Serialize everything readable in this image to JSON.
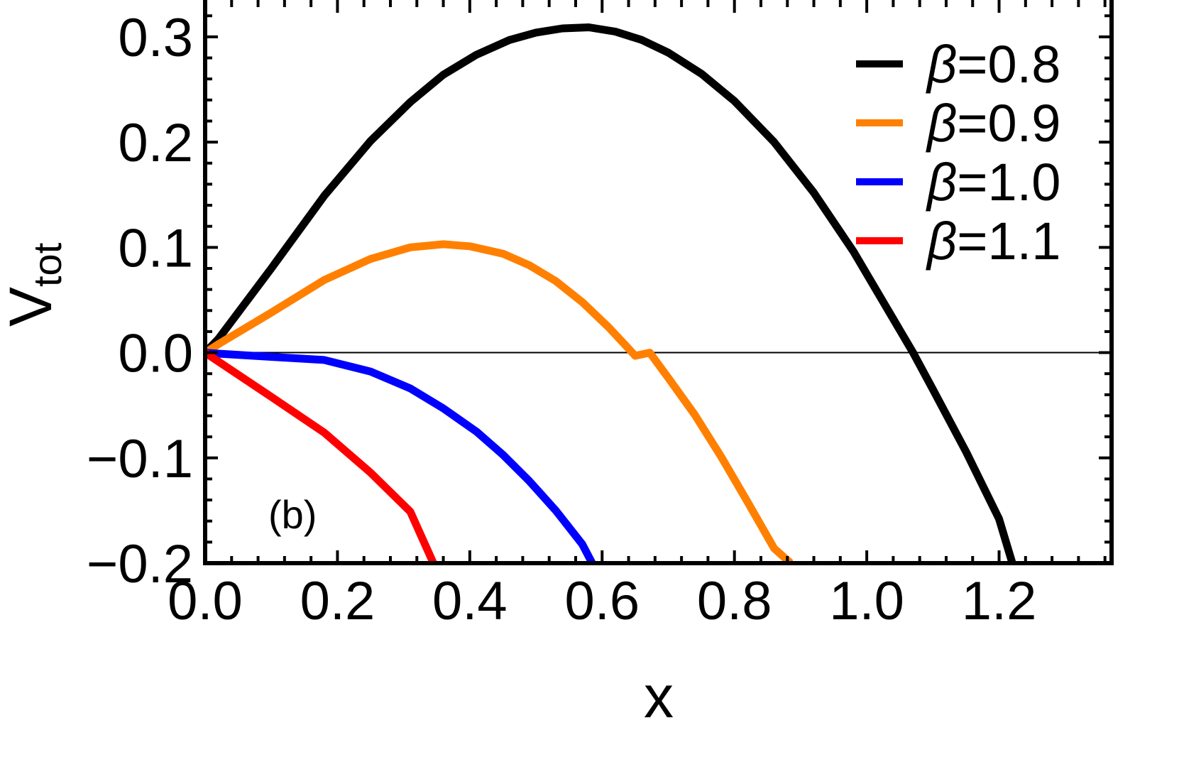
{
  "chart_data": {
    "type": "line",
    "title": "",
    "xlabel": "x",
    "ylabel_main": "V",
    "ylabel_sub": "tot",
    "panel_label": "(b)",
    "xlim": [
      0.0,
      1.37
    ],
    "ylim": [
      -0.2,
      0.335
    ],
    "x_ticks": [
      0.0,
      0.2,
      0.4,
      0.6,
      0.8,
      1.0,
      1.2
    ],
    "x_tick_labels": [
      "0.0",
      "0.2",
      "0.4",
      "0.6",
      "0.8",
      "1.0",
      "1.2"
    ],
    "y_ticks": [
      -0.2,
      -0.1,
      0.0,
      0.1,
      0.2,
      0.3
    ],
    "y_tick_labels": [
      "−0.2",
      "−0.1",
      "0.0",
      "0.1",
      "0.2",
      "0.3"
    ],
    "reference_line_y": 0.0,
    "legend_position": "top-right",
    "series": [
      {
        "name": "β=0.8",
        "symbol": "β",
        "label_rest": "=0.8",
        "color": "#000000",
        "x": [
          0.0,
          0.02,
          0.1,
          0.18,
          0.25,
          0.31,
          0.36,
          0.41,
          0.46,
          0.5,
          0.54,
          0.58,
          0.62,
          0.66,
          0.7,
          0.75,
          0.8,
          0.86,
          0.92,
          0.98,
          1.04,
          1.07,
          1.1,
          1.15,
          1.2,
          1.22
        ],
        "y": [
          0.0,
          0.013,
          0.08,
          0.149,
          0.201,
          0.238,
          0.264,
          0.283,
          0.297,
          0.304,
          0.308,
          0.309,
          0.305,
          0.297,
          0.285,
          0.265,
          0.239,
          0.2,
          0.152,
          0.096,
          0.032,
          0.0,
          -0.035,
          -0.094,
          -0.158,
          -0.2
        ]
      },
      {
        "name": "β=0.9",
        "symbol": "β",
        "label_rest": "=0.9",
        "color": "#ff8000",
        "x": [
          0.0,
          0.02,
          0.1,
          0.18,
          0.25,
          0.31,
          0.36,
          0.4,
          0.45,
          0.49,
          0.53,
          0.57,
          0.61,
          0.65,
          0.672,
          0.7,
          0.74,
          0.78,
          0.82,
          0.86,
          0.885
        ],
        "y": [
          0.0,
          0.008,
          0.038,
          0.069,
          0.089,
          0.1,
          0.103,
          0.101,
          0.094,
          0.083,
          0.068,
          0.048,
          0.024,
          -0.003,
          0.0,
          -0.024,
          -0.059,
          -0.099,
          -0.142,
          -0.186,
          -0.2
        ]
      },
      {
        "name": "β=1.0",
        "symbol": "β",
        "label_rest": "=1.0",
        "color": "#0000ff",
        "x": [
          0.0,
          0.02,
          0.1,
          0.18,
          0.25,
          0.31,
          0.36,
          0.41,
          0.45,
          0.49,
          0.53,
          0.57,
          0.585
        ],
        "y": [
          0.0,
          -0.001,
          -0.004,
          -0.007,
          -0.018,
          -0.034,
          -0.053,
          -0.075,
          -0.097,
          -0.122,
          -0.15,
          -0.182,
          -0.2
        ]
      },
      {
        "name": "β=1.1",
        "symbol": "β",
        "label_rest": "=1.1",
        "color": "#ff0000",
        "x": [
          0.0,
          0.05,
          0.1,
          0.18,
          0.25,
          0.31,
          0.345
        ],
        "y": [
          0.0,
          -0.021,
          -0.042,
          -0.076,
          -0.114,
          -0.151,
          -0.2
        ]
      }
    ]
  }
}
